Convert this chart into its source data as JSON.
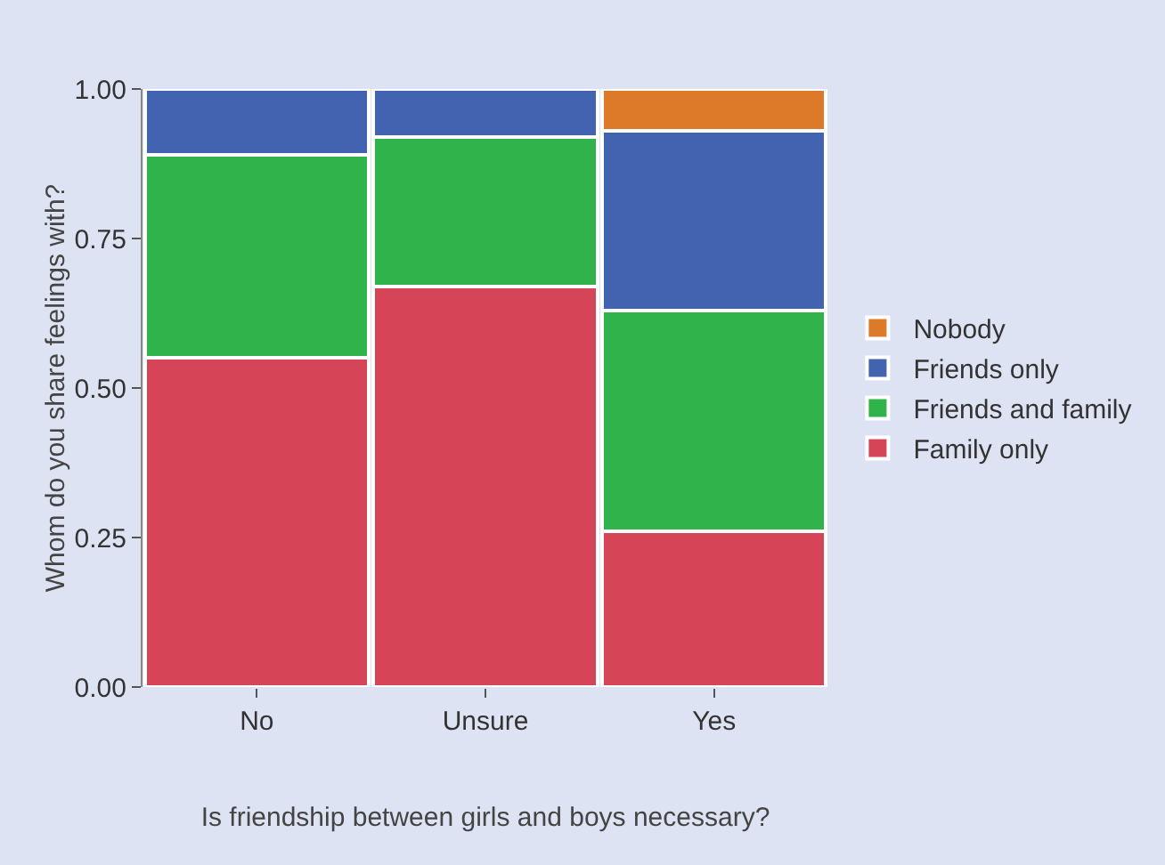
{
  "chart_data": {
    "type": "bar",
    "stacked": true,
    "xlabel": "Is friendship between girls and boys necessary?",
    "ylabel": "Whom do you share feelings with?",
    "categories": [
      "No",
      "Unsure",
      "Yes"
    ],
    "series": [
      {
        "name": "Family only",
        "color": "#d64458",
        "values": [
          0.55,
          0.67,
          0.26
        ]
      },
      {
        "name": "Friends and family",
        "color": "#2fb34a",
        "values": [
          0.34,
          0.25,
          0.37
        ]
      },
      {
        "name": "Friends only",
        "color": "#4263b0",
        "values": [
          0.11,
          0.08,
          0.3
        ]
      },
      {
        "name": "Nobody",
        "color": "#dd7a2a",
        "values": [
          null,
          null,
          0.07
        ]
      }
    ],
    "ylim": [
      0,
      1
    ],
    "yticks": [
      {
        "value": 0,
        "label": "0.00"
      },
      {
        "value": 0.25,
        "label": "0.25"
      },
      {
        "value": 0.5,
        "label": "0.50"
      },
      {
        "value": 0.75,
        "label": "0.75"
      },
      {
        "value": 1,
        "label": "1.00"
      }
    ],
    "grid": false,
    "legend": "right"
  }
}
